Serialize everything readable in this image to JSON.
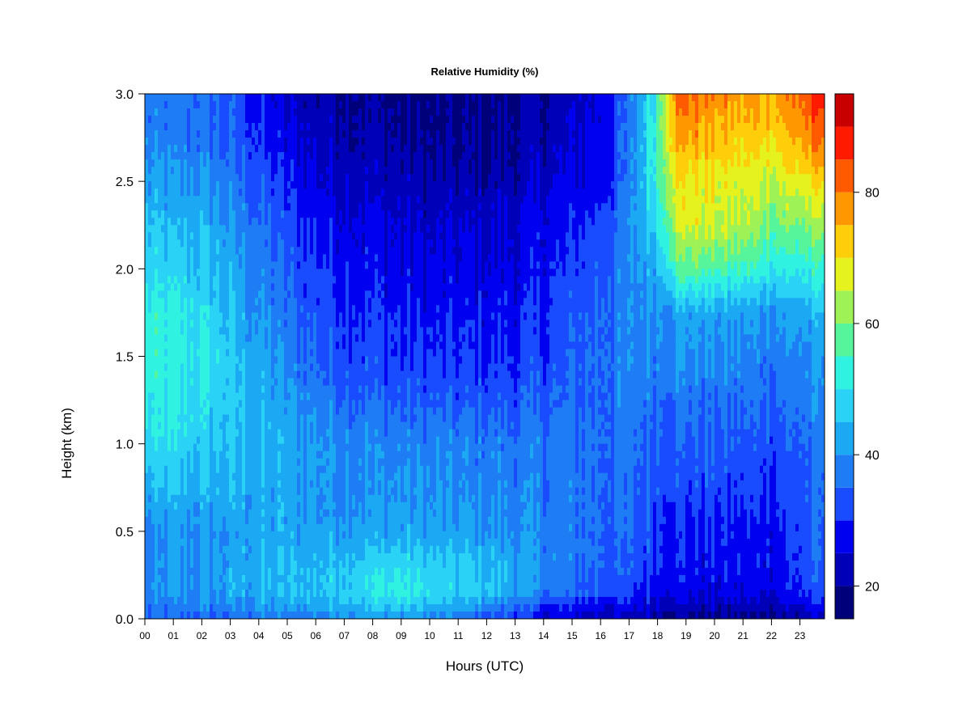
{
  "chart_data": {
    "type": "heatmap",
    "title": "Relative Humidity (%)",
    "xlabel": "Hours (UTC)",
    "ylabel": "Height (km)",
    "x_ticks": [
      "00",
      "01",
      "02",
      "03",
      "04",
      "05",
      "06",
      "07",
      "08",
      "09",
      "10",
      "11",
      "12",
      "13",
      "14",
      "15",
      "16",
      "17",
      "18",
      "19",
      "20",
      "21",
      "22",
      "23"
    ],
    "y_ticks": [
      "0.0",
      "0.5",
      "1.0",
      "1.5",
      "2.0",
      "2.5",
      "3.0"
    ],
    "xlim": [
      0,
      23.85
    ],
    "ylim": [
      0,
      3.0
    ],
    "colorbar": {
      "levels": [
        15,
        20,
        25,
        30,
        35,
        40,
        45,
        50,
        55,
        60,
        65,
        70,
        75,
        80,
        85,
        90,
        95
      ],
      "colors": [
        "#00007a",
        "#0000b8",
        "#0000f0",
        "#1a4cff",
        "#1e7df5",
        "#1aa9f2",
        "#2ad3f5",
        "#30f2e0",
        "#56f59c",
        "#9ef256",
        "#e6f21e",
        "#ffce0a",
        "#ff9800",
        "#ff5a00",
        "#ff1a00",
        "#c80000",
        "#7a0000"
      ],
      "tick_labels": [
        "20",
        "40",
        "60",
        "80"
      ],
      "tick_values": [
        20,
        40,
        60,
        80
      ]
    },
    "heights_km": [
      0.0,
      0.05,
      0.15,
      0.3,
      0.5,
      0.75,
      1.0,
      1.25,
      1.5,
      1.75,
      2.0,
      2.25,
      2.5,
      2.75,
      3.0
    ],
    "hours_utc": [
      0,
      1,
      2,
      3,
      4,
      5,
      6,
      7,
      8,
      9,
      10,
      11,
      12,
      13,
      14,
      15,
      16,
      17,
      18,
      18.5,
      19,
      20,
      21,
      22,
      23,
      23.85
    ],
    "rh_percent": [
      [
        34,
        34,
        34,
        34,
        35,
        36,
        38,
        40,
        40,
        40,
        38,
        36,
        33,
        30,
        26,
        24,
        23,
        22,
        21,
        20,
        19,
        19,
        18,
        18,
        20,
        24
      ],
      [
        36,
        37,
        37,
        38,
        40,
        40,
        42,
        44,
        44,
        45,
        43,
        40,
        37,
        33,
        29,
        27,
        26,
        25,
        24,
        23,
        22,
        21,
        21,
        21,
        23,
        27
      ],
      [
        38,
        40,
        40,
        42,
        43,
        44,
        45,
        48,
        50,
        52,
        49,
        47,
        48,
        42,
        37,
        35,
        33,
        31,
        29,
        28,
        27,
        26,
        26,
        27,
        30,
        33
      ],
      [
        37,
        40,
        41,
        42,
        44,
        44,
        45,
        47,
        48,
        49,
        47,
        46,
        45,
        43,
        39,
        37,
        35,
        33,
        31,
        29,
        28,
        28,
        28,
        28,
        31,
        34
      ],
      [
        38,
        40,
        40,
        41,
        42,
        42,
        42,
        42,
        42,
        42,
        41,
        41,
        40,
        40,
        38,
        37,
        36,
        34,
        32,
        30,
        29,
        29,
        28,
        29,
        32,
        35
      ],
      [
        43,
        44,
        44,
        43,
        43,
        42,
        41,
        40,
        40,
        40,
        39,
        39,
        38,
        38,
        37,
        37,
        36,
        35,
        34,
        33,
        32,
        32,
        31,
        31,
        33,
        36
      ],
      [
        48,
        48,
        47,
        45,
        44,
        43,
        41,
        40,
        39,
        38,
        38,
        38,
        38,
        37,
        37,
        36,
        36,
        36,
        35,
        34,
        34,
        34,
        33,
        33,
        35,
        37
      ],
      [
        50,
        50,
        49,
        46,
        43,
        41,
        38,
        36,
        35,
        34,
        34,
        33,
        33,
        33,
        34,
        35,
        36,
        37,
        37,
        37,
        37,
        36,
        36,
        36,
        37,
        39
      ],
      [
        53,
        52,
        51,
        46,
        42,
        38,
        35,
        33,
        32,
        31,
        30,
        30,
        30,
        30,
        32,
        34,
        36,
        38,
        39,
        40,
        40,
        39,
        38,
        38,
        39,
        41
      ],
      [
        52,
        51,
        49,
        44,
        40,
        36,
        33,
        31,
        30,
        29,
        28,
        28,
        28,
        28,
        30,
        33,
        35,
        38,
        41,
        42,
        43,
        42,
        41,
        41,
        42,
        44
      ],
      [
        48,
        47,
        46,
        42,
        38,
        34,
        31,
        29,
        28,
        27,
        26,
        26,
        26,
        26,
        28,
        31,
        34,
        38,
        45,
        55,
        58,
        56,
        54,
        52,
        52,
        53
      ],
      [
        45,
        44,
        44,
        40,
        36,
        32,
        29,
        27,
        26,
        25,
        24,
        24,
        24,
        25,
        27,
        29,
        32,
        38,
        50,
        63,
        67,
        65,
        63,
        60,
        60,
        62
      ],
      [
        41,
        40,
        40,
        37,
        33,
        29,
        26,
        24,
        23,
        22,
        21,
        21,
        21,
        22,
        24,
        26,
        28,
        36,
        55,
        68,
        70,
        68,
        67,
        66,
        68,
        72
      ],
      [
        38,
        37,
        37,
        34,
        30,
        26,
        23,
        22,
        21,
        20,
        19,
        19,
        19,
        20,
        22,
        24,
        27,
        36,
        56,
        74,
        77,
        74,
        72,
        72,
        76,
        82
      ],
      [
        36,
        36,
        36,
        33,
        28,
        24,
        22,
        21,
        20,
        19,
        18,
        18,
        18,
        19,
        21,
        23,
        26,
        35,
        55,
        78,
        82,
        78,
        76,
        77,
        82,
        88
      ]
    ]
  }
}
